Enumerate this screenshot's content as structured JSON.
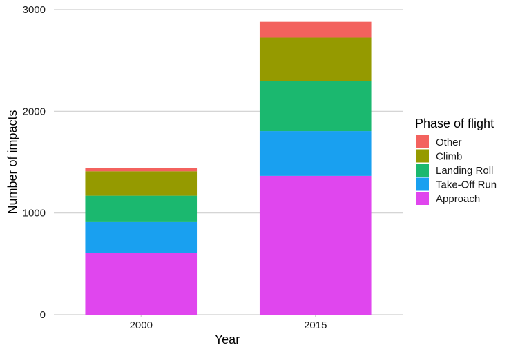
{
  "chart_data": {
    "type": "bar",
    "stacked": true,
    "title": "",
    "xlabel": "Year",
    "ylabel": "Number of impacts",
    "categories": [
      "2000",
      "2015"
    ],
    "ylim": [
      0,
      3000
    ],
    "yticks": [
      0,
      1000,
      2000,
      3000
    ],
    "grid": true,
    "legend": {
      "title": "Phase of flight",
      "position": "right"
    },
    "series": [
      {
        "name": "Approach",
        "color": "#E046EE",
        "values": [
          605,
          1365
        ]
      },
      {
        "name": "Take-Off Run",
        "color": "#19A0F0",
        "values": [
          305,
          440
        ]
      },
      {
        "name": "Landing Roll",
        "color": "#1BB86F",
        "values": [
          260,
          490
        ]
      },
      {
        "name": "Climb",
        "color": "#959A00",
        "values": [
          240,
          430
        ]
      },
      {
        "name": "Other",
        "color": "#F3625E",
        "values": [
          35,
          155
        ]
      }
    ],
    "legend_order": [
      "Other",
      "Climb",
      "Landing Roll",
      "Take-Off Run",
      "Approach"
    ]
  }
}
